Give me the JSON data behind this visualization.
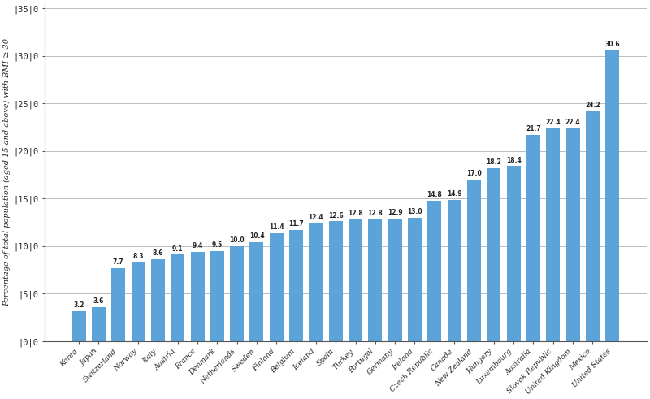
{
  "categories": [
    "Korea",
    "Japan",
    "Switzerland",
    "Norway",
    "Italy",
    "Austria",
    "France",
    "Denmark",
    "Netherlands",
    "Sweden",
    "Finland",
    "Belgium",
    "Iceland",
    "Spain",
    "Turkey",
    "Portugal",
    "Germany",
    "Ireland",
    "Czech Republic",
    "Canada",
    "New Zealand",
    "Hungary",
    "Luxembourg",
    "Australia",
    "Slovak Republic",
    "United Kingdom",
    "Mexico",
    "United States"
  ],
  "values": [
    3.2,
    3.6,
    7.7,
    8.3,
    8.6,
    9.1,
    9.4,
    9.5,
    10.0,
    10.4,
    11.4,
    11.7,
    12.4,
    12.6,
    12.8,
    12.8,
    12.9,
    13.0,
    14.8,
    14.9,
    17.0,
    18.2,
    18.4,
    21.7,
    22.4,
    22.4,
    24.2,
    30.6
  ],
  "bar_color": "#5ba3d9",
  "ylabel": "Percentage of total population (aged 15 and above) with BMI ≥ 30",
  "ylim": [
    0,
    35
  ],
  "yticks": [
    0,
    5,
    10,
    15,
    20,
    25,
    30,
    35
  ],
  "value_fontsize": 5.5,
  "bar_width": 0.7,
  "figure_facecolor": "#ffffff",
  "axes_facecolor": "#ffffff",
  "grid_color": "#bbbbbb",
  "label_fontsize": 6.5,
  "ylabel_fontsize": 7.0,
  "ytick_fontsize": 7.5,
  "xtick_fontsize": 6.5
}
